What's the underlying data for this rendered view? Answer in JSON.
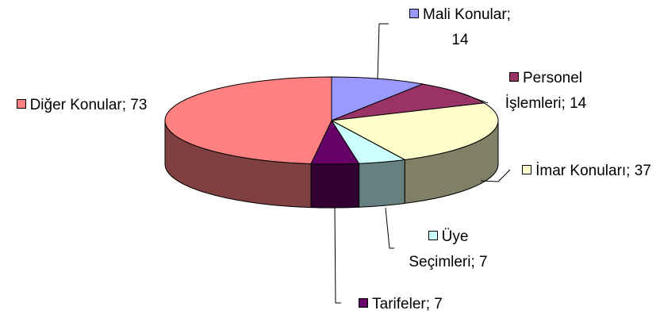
{
  "chart_data": {
    "type": "pie3d",
    "categories": [
      "Mali Konular;",
      "Personel İşlemleri;",
      "İmar Konuları;",
      "Üye Seçimleri;",
      "Tarifeler;",
      "Diğer Konular;"
    ],
    "values": [
      14,
      14,
      37,
      7,
      7,
      73
    ],
    "colors": [
      "#9999ff",
      "#993366",
      "#ffffcc",
      "#ccffff",
      "#660066",
      "#ff8080"
    ]
  }
}
